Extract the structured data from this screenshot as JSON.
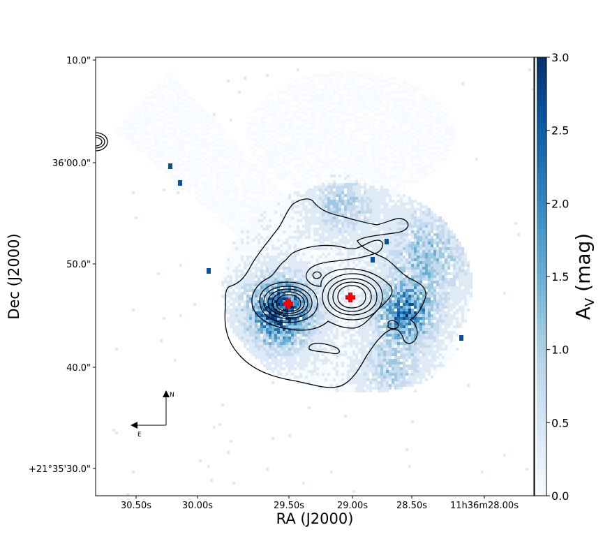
{
  "chart_data": {
    "type": "heatmap",
    "xlabel": "RA (J2000)",
    "ylabel": "Dec (J2000)",
    "x_ticks": [
      "30.50s",
      "30.00s",
      "29.50s",
      "29.00s",
      "28.50s",
      "11h36m28.00s"
    ],
    "y_ticks": [
      "+21°35'30.0\"",
      "40.0\"",
      "50.0\"",
      "36'00.0\"",
      "10.0\""
    ],
    "colorbar": {
      "label_main": "A",
      "label_sub": "V",
      "label_unit": " (mag)",
      "ticks": [
        "0.0",
        "0.5",
        "1.0",
        "1.5",
        "2.0",
        "2.5",
        "3.0"
      ],
      "range": [
        0.0,
        3.0
      ],
      "colormap": [
        "#f7fbff",
        "#deebf7",
        "#c6dbef",
        "#9ecae1",
        "#6baed6",
        "#4292c6",
        "#2171b5",
        "#08519c",
        "#08306b"
      ]
    },
    "compass": {
      "north": "N",
      "east": "E"
    },
    "markers": [
      {
        "name": "source-east",
        "color": "#ff0000",
        "shape": "cross"
      },
      {
        "name": "source-west",
        "color": "#ff0000",
        "shape": "cross"
      }
    ],
    "grid": false,
    "contours": true
  }
}
